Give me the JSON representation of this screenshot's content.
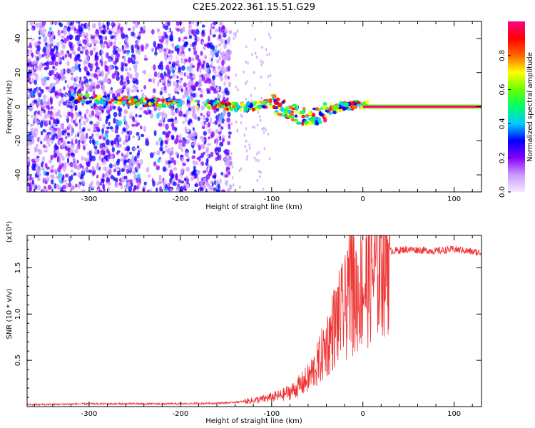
{
  "title": "C2E5.2022.361.15.51.G29",
  "chart_data": [
    {
      "type": "heatmap",
      "xlabel": "Height of straight line (km)",
      "ylabel": "Frequency (Hz)",
      "xlim": [
        -368,
        130
      ],
      "ylim": [
        -50,
        50
      ],
      "x_ticks": [
        -300,
        -200,
        -100,
        0,
        100
      ],
      "y_ticks": [
        -40,
        -20,
        0,
        20,
        40
      ],
      "colorbar": {
        "label": "Normalized spectral amplitude",
        "range": [
          0,
          1
        ],
        "ticks": [
          "0.0",
          "0.2",
          "0.4",
          "0.6",
          "0.8"
        ],
        "colors": [
          "#f4eaff",
          "#cc99ff",
          "#8800ff",
          "#0000ff",
          "#00ccff",
          "#00ff66",
          "#66ff00",
          "#ffff00",
          "#ff6600",
          "#ff0000",
          "#ff0088"
        ]
      },
      "ridge": {
        "x": [
          -315,
          -285,
          -250,
          -215,
          -160,
          -140,
          -120,
          -100,
          -85,
          -70,
          -55,
          -40,
          -25,
          -10,
          0,
          130
        ],
        "y": [
          5,
          4,
          3,
          2,
          1,
          0,
          0,
          2,
          -2,
          -5,
          -6,
          -3,
          0,
          1,
          1,
          0
        ]
      }
    },
    {
      "type": "line",
      "xlabel": "Height of straight line (km)",
      "ylabel": "SNR (10 * v/v)",
      "y_multiplier": "(x10⁴)",
      "xlim": [
        -368,
        130
      ],
      "ylim": [
        0,
        1.85
      ],
      "x_ticks": [
        -300,
        -200,
        -100,
        0,
        100
      ],
      "y_ticks": [
        "0.5",
        "1.0",
        "1.5"
      ],
      "color": "#ee3333",
      "envelope": {
        "x": [
          -368,
          -300,
          -200,
          -150,
          -125,
          -110,
          -90,
          -75,
          -60,
          -50,
          -40,
          -30,
          -20,
          -10,
          0,
          10,
          20,
          30,
          50,
          80,
          100,
          130
        ],
        "y": [
          0.02,
          0.03,
          0.03,
          0.04,
          0.06,
          0.08,
          0.12,
          0.18,
          0.3,
          0.45,
          0.65,
          0.9,
          1.05,
          1.2,
          1.3,
          1.45,
          1.6,
          1.68,
          1.7,
          1.68,
          1.7,
          1.66
        ]
      }
    }
  ]
}
